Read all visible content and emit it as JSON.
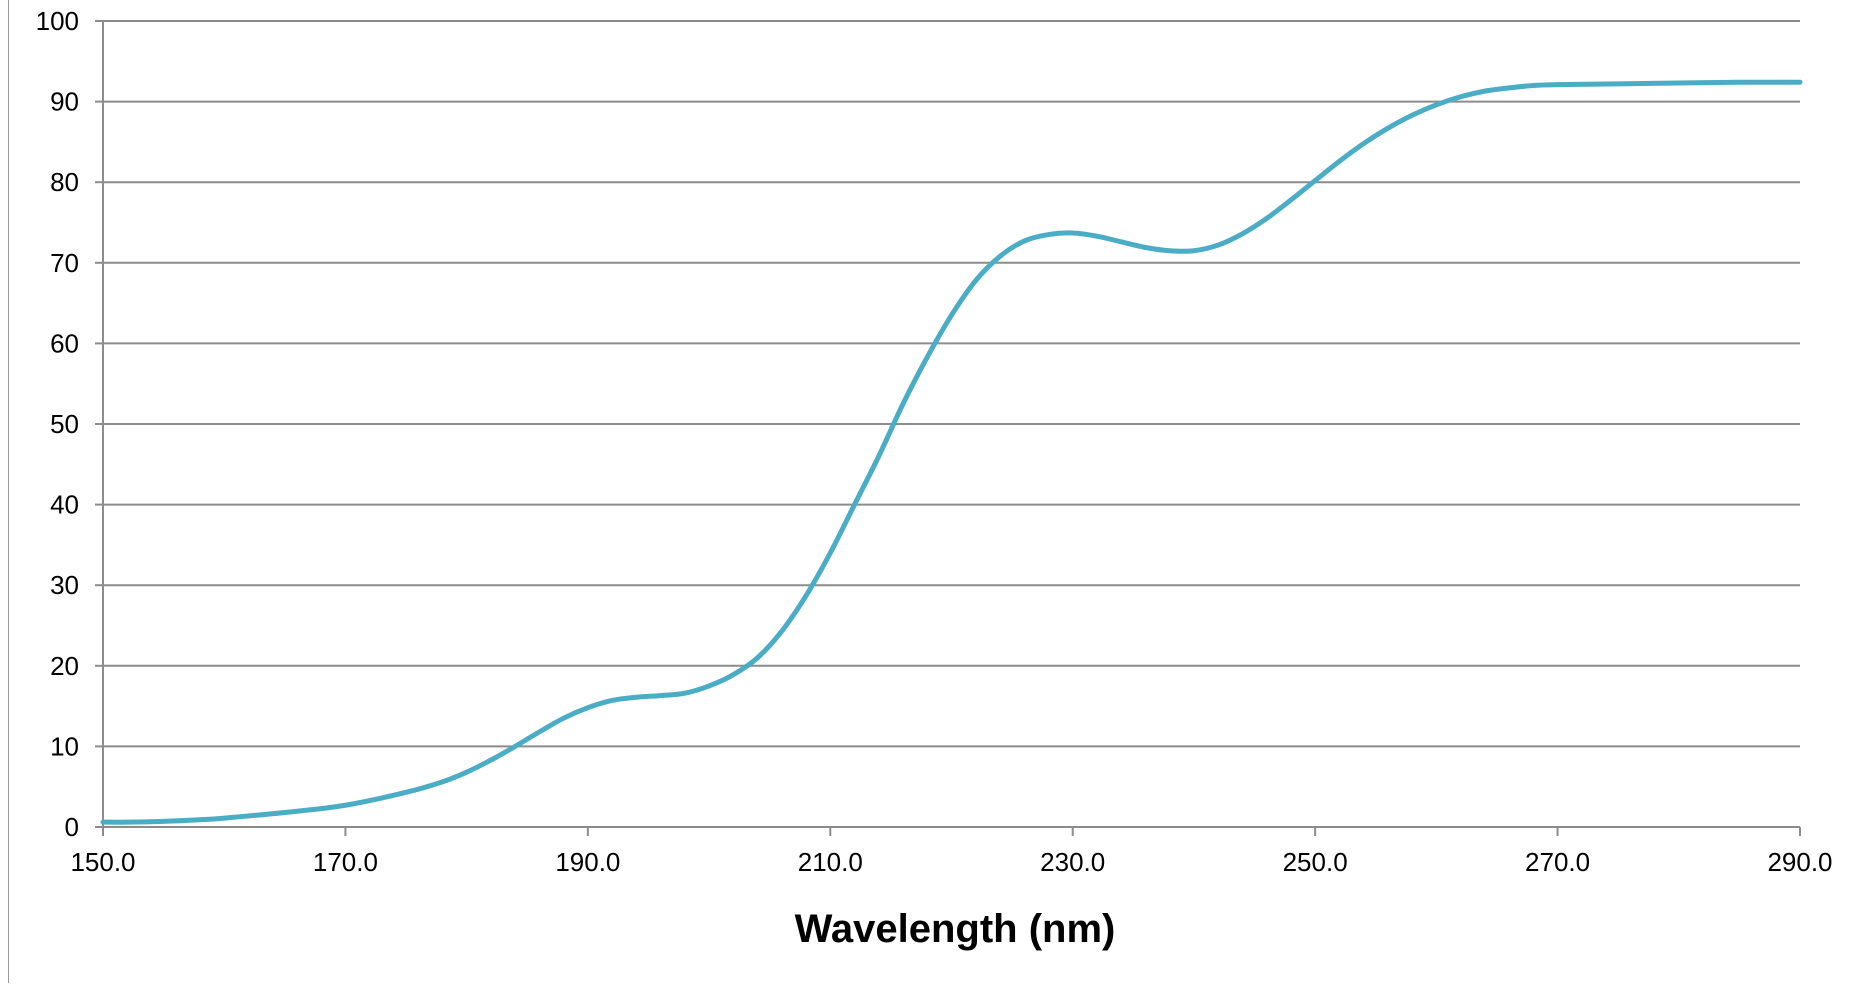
{
  "chart_data": {
    "type": "line",
    "title": "",
    "xlabel": "Wavelength (nm)",
    "ylabel": "",
    "xlim": [
      150,
      290
    ],
    "ylim": [
      0,
      100
    ],
    "grid": true,
    "legend": "none",
    "x_ticks": [
      "150.0",
      "170.0",
      "190.0",
      "210.0",
      "230.0",
      "250.0",
      "270.0",
      "290.0"
    ],
    "y_ticks": [
      "0",
      "10",
      "20",
      "30",
      "40",
      "50",
      "60",
      "70",
      "80",
      "90",
      "100"
    ],
    "series": [
      {
        "color": "#4bacc6",
        "x": [
          150,
          152,
          155,
          158,
          160,
          165,
          170,
          175,
          178,
          180,
          182,
          184,
          186,
          188,
          190,
          192,
          194,
          196,
          198,
          200,
          202,
          204,
          206,
          208,
          210,
          212,
          214,
          216,
          218,
          220,
          222,
          224,
          226,
          228,
          230,
          232,
          234,
          236,
          238,
          240,
          242,
          244,
          246,
          248,
          250,
          252,
          254,
          256,
          258,
          260,
          262,
          264,
          266,
          268,
          270,
          275,
          280,
          285,
          290
        ],
        "y": [
          0.6,
          0.6,
          0.7,
          0.9,
          1.1,
          1.8,
          2.7,
          4.3,
          5.6,
          6.8,
          8.3,
          10.0,
          11.8,
          13.5,
          14.8,
          15.7,
          16.1,
          16.3,
          16.6,
          17.5,
          18.9,
          21.0,
          24.3,
          28.7,
          34.0,
          40.0,
          46.0,
          52.5,
          58.3,
          63.5,
          67.8,
          70.8,
          72.7,
          73.5,
          73.7,
          73.3,
          72.6,
          71.9,
          71.5,
          71.5,
          72.2,
          73.6,
          75.5,
          77.8,
          80.2,
          82.6,
          84.8,
          86.7,
          88.3,
          89.6,
          90.6,
          91.3,
          91.7,
          92.0,
          92.1,
          92.2,
          92.3,
          92.4,
          92.4
        ]
      }
    ]
  }
}
